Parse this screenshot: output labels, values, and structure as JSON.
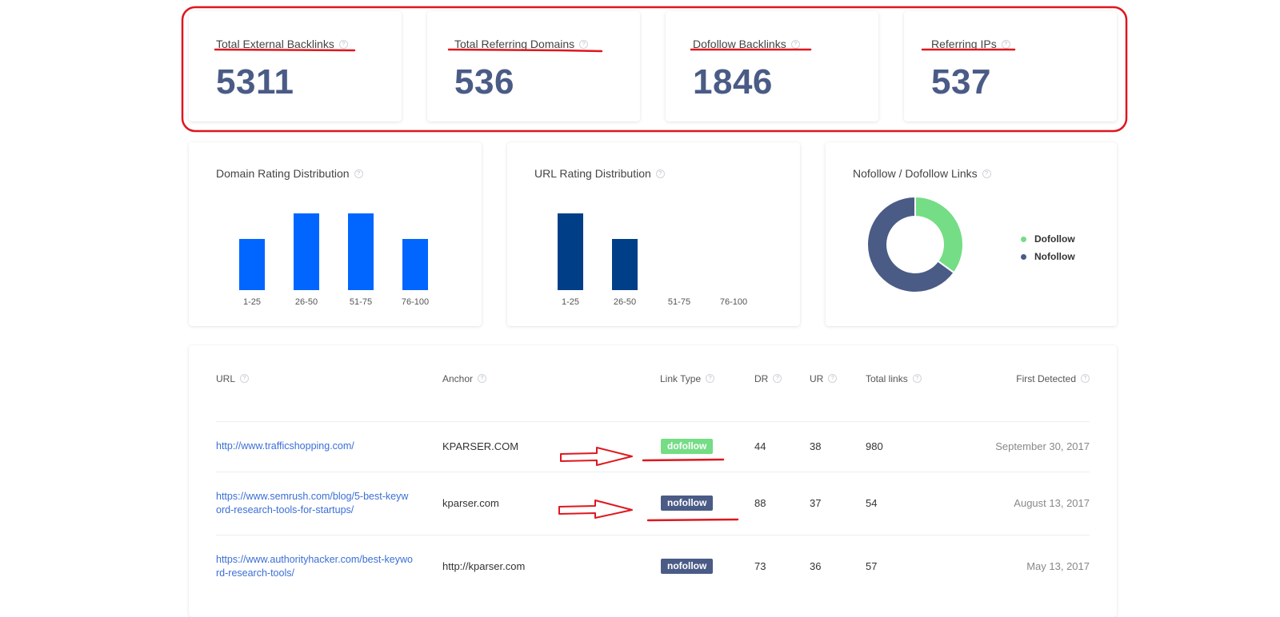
{
  "stats": [
    {
      "title": "Total External Backlinks",
      "value": "5311"
    },
    {
      "title": "Total Referring Domains",
      "value": "536"
    },
    {
      "title": "Dofollow Backlinks",
      "value": "1846"
    },
    {
      "title": "Referring IPs",
      "value": "537"
    }
  ],
  "help_glyph": "?",
  "chart_data": [
    {
      "type": "bar",
      "title": "Domain Rating Distribution",
      "categories": [
        "1-25",
        "26-50",
        "51-75",
        "76-100"
      ],
      "values": [
        2,
        3,
        3,
        2
      ],
      "color": "#0066ff"
    },
    {
      "type": "bar",
      "title": "URL Rating Distribution",
      "categories": [
        "1-25",
        "26-50",
        "51-75",
        "76-100"
      ],
      "values": [
        3,
        2,
        0,
        0
      ],
      "color": "#003f87"
    },
    {
      "type": "pie",
      "title": "Nofollow / Dofollow Links",
      "series": [
        {
          "name": "Dofollow",
          "value": 35,
          "color": "#74dd85"
        },
        {
          "name": "Nofollow",
          "value": 65,
          "color": "#4a5b86"
        }
      ],
      "legend": "right"
    }
  ],
  "table": {
    "headers": [
      "URL",
      "Anchor",
      "Link Type",
      "DR",
      "UR",
      "Total links",
      "First Detected"
    ],
    "rows": [
      {
        "url_lines": [
          "http://www.trafficshopping.com/",
          ""
        ],
        "anchor": "KPARSER.COM",
        "link_type": "dofollow",
        "dr": "44",
        "ur": "38",
        "total": "980",
        "first": "September 30, 2017"
      },
      {
        "url_lines": [
          "https://www.semrush.com/blog/5-best-keyw",
          "ord-research-tools-for-startups/"
        ],
        "anchor": "kparser.com",
        "link_type": "nofollow",
        "dr": "88",
        "ur": "37",
        "total": "54",
        "first": "August 13, 2017"
      },
      {
        "url_lines": [
          "https://www.authorityhacker.com/best-keywo",
          "rd-research-tools/"
        ],
        "anchor": "http://kparser.com",
        "link_type": "nofollow",
        "dr": "73",
        "ur": "36",
        "total": "57",
        "first": "May 13, 2017"
      }
    ]
  },
  "colors": {
    "dofollow_badge": "#74dd85",
    "nofollow_badge": "#4a5b86",
    "annotation": "#e0161e",
    "link": "#3b6fd6"
  }
}
